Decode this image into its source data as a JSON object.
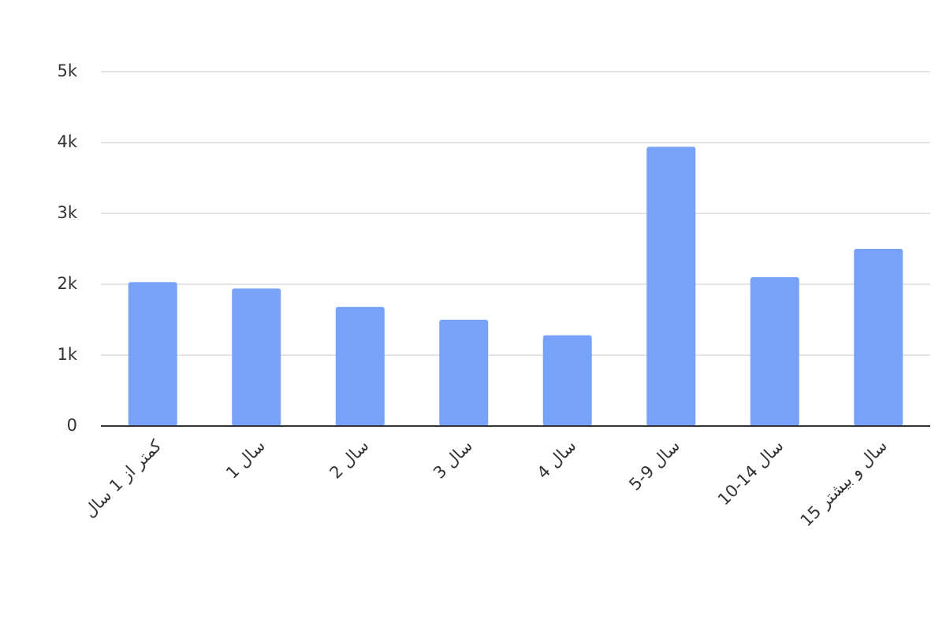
{
  "chart_data": {
    "type": "bar",
    "categories": [
      "کمتر از 1 سال",
      "1 سال",
      "2 سال",
      "3 سال",
      "4 سال",
      "5-9 سال",
      "10-14 سال",
      "15 سال و بیشتر"
    ],
    "values": [
      2030,
      1940,
      1680,
      1500,
      1280,
      3940,
      2100,
      2500
    ],
    "color": "#78a2f8",
    "ylim": [
      0,
      5000
    ],
    "yticks": [
      0,
      {
        "value": 1000,
        "label": "1k"
      },
      {
        "value": 2000,
        "label": "2k"
      },
      {
        "value": 3000,
        "label": "3k"
      },
      {
        "value": 4000,
        "label": "4k"
      },
      {
        "value": 5000,
        "label": "5k"
      }
    ],
    "grid": true
  }
}
